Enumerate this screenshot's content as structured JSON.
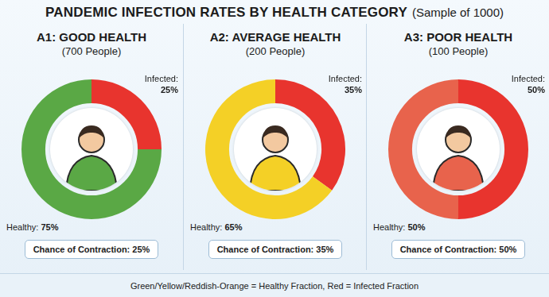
{
  "title": "PANDEMIC INFECTION RATES BY HEALTH CATEGORY",
  "subtitle": "(Sample of 1000)",
  "footer": "Green/Yellow/Reddish-Orange = Healthy Fraction, Red = Infected Fraction",
  "chart_data": [
    {
      "type": "doughnut",
      "title": "A1: GOOD HEALTH",
      "subtitle": "(700 People)",
      "categories": [
        "Infected:",
        "Healthy:"
      ],
      "values": [
        25,
        75
      ],
      "value_labels": [
        "25%",
        "75%"
      ],
      "colors": [
        "#e8342e",
        "#5aa845"
      ],
      "data_labels": true,
      "annotation": "Chance of Contraction: 25%"
    },
    {
      "type": "doughnut",
      "title": "A2: AVERAGE HEALTH",
      "subtitle": "(200 People)",
      "categories": [
        "Infected:",
        "Healthy:"
      ],
      "values": [
        35,
        65
      ],
      "value_labels": [
        "35%",
        "65%"
      ],
      "colors": [
        "#e8342e",
        "#f4d026"
      ],
      "data_labels": true,
      "annotation": "Chance of Contraction: 35%"
    },
    {
      "type": "doughnut",
      "title": "A3: POOR HEALTH",
      "subtitle": "(100 People)",
      "categories": [
        "Infected:",
        "Healthy:"
      ],
      "values": [
        50,
        50
      ],
      "value_labels": [
        "50%",
        "50%"
      ],
      "colors": [
        "#e8342e",
        "#e8634c"
      ],
      "data_labels": true,
      "annotation": "Chance of Contraction: 50%"
    }
  ]
}
